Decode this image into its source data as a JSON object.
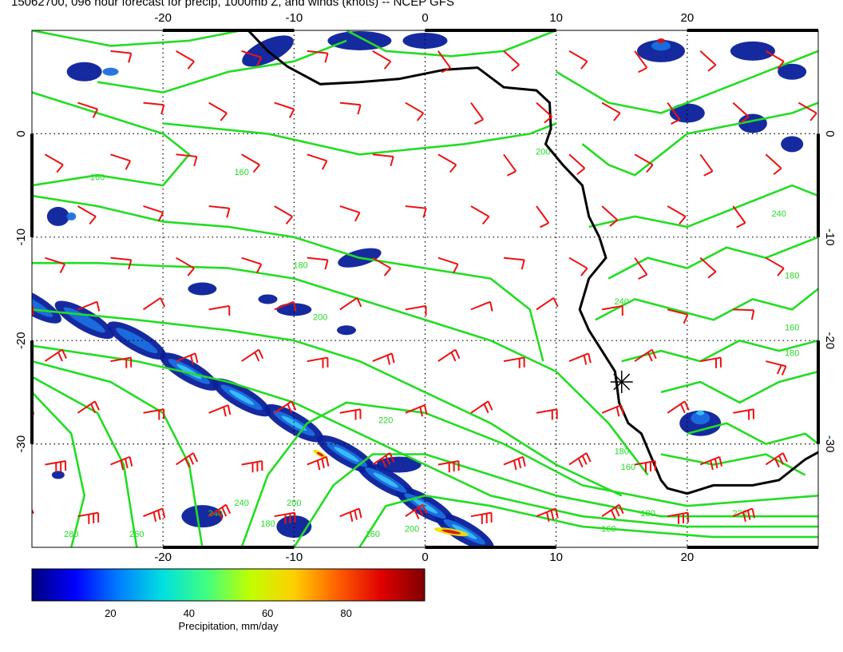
{
  "title": "15062700, 096 hour forecast for precip, 1000mb Z, and winds (knots) -- NCEP GFS",
  "axes": {
    "x_ticks": [
      -20,
      -10,
      0,
      10,
      20
    ],
    "y_ticks": [
      0,
      -10,
      -20,
      -30
    ],
    "lon_range": [
      -30,
      30
    ],
    "lat_range": [
      -40,
      10
    ]
  },
  "colorbar": {
    "title": "Precipitation, mm/day",
    "ticks": [
      20,
      40,
      60,
      80
    ],
    "range": [
      0,
      100
    ],
    "colors": [
      "#00007f",
      "#0000ff",
      "#0080ff",
      "#00e0e0",
      "#40ff80",
      "#c0ff00",
      "#ffd000",
      "#ff6000",
      "#e00000",
      "#7f0000"
    ]
  },
  "contours": {
    "color": "#22dd22",
    "labels": [
      "160",
      "160",
      "180",
      "200",
      "220",
      "180",
      "160",
      "180",
      "160",
      "240",
      "200",
      "280",
      "260",
      "240",
      "180",
      "160",
      "200",
      "240",
      "220",
      "180",
      "160",
      "180",
      "200",
      "240"
    ]
  },
  "wind_barbs": {
    "color": "#ee1111"
  },
  "coastline": {
    "color": "#000000"
  },
  "marker": {
    "symbol": "asterisk",
    "lon": 15,
    "lat": -24
  }
}
